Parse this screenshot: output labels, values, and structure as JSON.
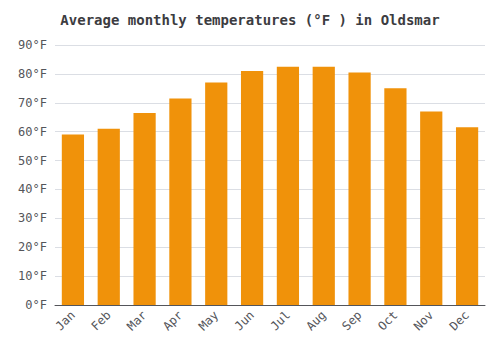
{
  "chart_data": {
    "type": "bar",
    "title": "Average monthly temperatures (°F ) in Oldsmar",
    "categories": [
      "Jan",
      "Feb",
      "Mar",
      "Apr",
      "May",
      "Jun",
      "Jul",
      "Aug",
      "Sep",
      "Oct",
      "Nov",
      "Dec"
    ],
    "values": [
      59,
      61,
      66.5,
      71.5,
      77,
      81,
      82.5,
      82.5,
      80.5,
      75,
      67,
      61.5
    ],
    "color": "#F0920A",
    "ylim": [
      0,
      90
    ],
    "yticks": [
      {
        "value": 0,
        "label": "0°F"
      },
      {
        "value": 10,
        "label": "10°F"
      },
      {
        "value": 20,
        "label": "20°F"
      },
      {
        "value": 30,
        "label": "30°F"
      },
      {
        "value": 40,
        "label": "40°F"
      },
      {
        "value": 50,
        "label": "50°F"
      },
      {
        "value": 60,
        "label": "60°F"
      },
      {
        "value": 70,
        "label": "70°F"
      },
      {
        "value": 80,
        "label": "80°F"
      },
      {
        "value": 90,
        "label": "90°F"
      }
    ],
    "grid": true
  }
}
